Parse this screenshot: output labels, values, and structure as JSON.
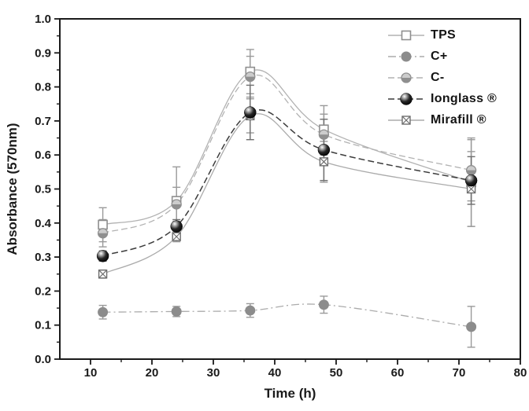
{
  "chart_data": {
    "type": "line",
    "title": "",
    "xlabel": "Time (h)",
    "ylabel": "Absorbance (570nm)",
    "xlim": [
      5,
      80
    ],
    "ylim": [
      0.0,
      1.0
    ],
    "xticks": [
      10,
      20,
      30,
      40,
      50,
      60,
      70,
      80
    ],
    "xminor": [
      15,
      25,
      35,
      45,
      55,
      65,
      75
    ],
    "yticks": [
      0.0,
      0.1,
      0.2,
      0.3,
      0.4,
      0.5,
      0.6,
      0.7,
      0.8,
      0.9,
      1.0
    ],
    "yminor_step": 0.05,
    "grid": false,
    "legend_position": "top-right-inside",
    "x": [
      12,
      24,
      36,
      48,
      72
    ],
    "series": [
      {
        "name": "TPS",
        "marker": "open-square",
        "line_style": "solid",
        "line_color": "#b2b2b2",
        "marker_color": "#8f8f8f",
        "error_color": "#9a9a9a",
        "values": [
          0.395,
          0.465,
          0.845,
          0.675,
          0.52
        ],
        "errors": [
          0.05,
          0.1,
          0.065,
          0.07,
          0.13
        ]
      },
      {
        "name": "C+",
        "marker": "filled-circle",
        "line_style": "dash-dot",
        "line_color": "#ababab",
        "marker_color": "#8c8c8c",
        "error_color": "#9a9a9a",
        "values": [
          0.138,
          0.14,
          0.143,
          0.16,
          0.095
        ],
        "errors": [
          0.02,
          0.015,
          0.02,
          0.025,
          0.06
        ]
      },
      {
        "name": "C-",
        "marker": "half-filled-circle",
        "line_style": "dash",
        "line_color": "#b2b2b2",
        "marker_color": "#8f8f8f",
        "error_color": "#9a9a9a",
        "values": [
          0.37,
          0.455,
          0.83,
          0.66,
          0.555
        ],
        "errors": [
          0.04,
          0.05,
          0.06,
          0.06,
          0.09
        ]
      },
      {
        "name": "Ionglass ®",
        "marker": "sphere",
        "line_style": "dash",
        "line_color": "#3c3c3c",
        "marker_color": "#0a0a0a",
        "error_color": "#6e6e6e",
        "values": [
          0.303,
          0.39,
          0.725,
          0.615,
          0.525
        ],
        "errors": [
          0.015,
          0.02,
          0.08,
          0.09,
          0.07
        ]
      },
      {
        "name": "Mirafill ®",
        "marker": "square-x",
        "line_style": "solid",
        "line_color": "#ababab",
        "marker_color": "#6e6e6e",
        "error_color": "#9a9a9a",
        "values": [
          0.25,
          0.36,
          0.715,
          0.58,
          0.5
        ],
        "errors": [
          0.012,
          0.015,
          0.05,
          0.06,
          0.11
        ]
      }
    ]
  },
  "colors": {
    "axis": "#1a1a1a",
    "background": "#ffffff"
  }
}
